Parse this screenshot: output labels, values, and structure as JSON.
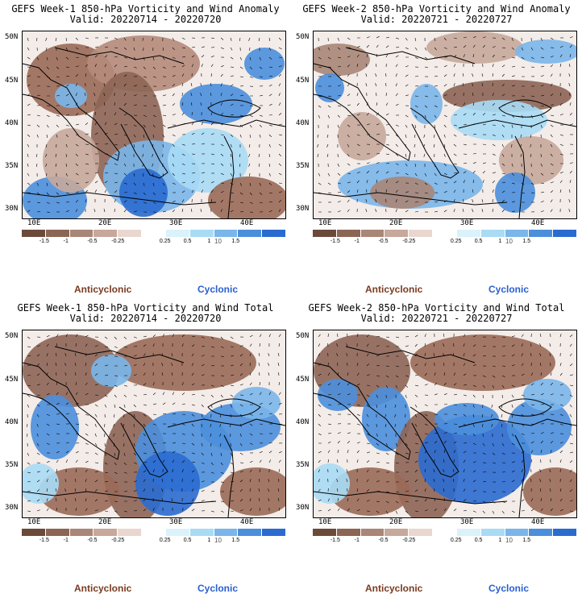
{
  "panels": [
    {
      "title": "GEFS Week-1 850-hPa Vorticity and Wind Anomaly",
      "valid": "Valid: 20220714 - 20220720"
    },
    {
      "title": "GEFS Week-2 850-hPa Vorticity and Wind Anomaly",
      "valid": "Valid: 20220721 - 20220727"
    },
    {
      "title": "GEFS Week-1 850-hPa Vorticity and Wind Total",
      "valid": "Valid: 20220714 - 20220720"
    },
    {
      "title": "GEFS Week-2 850-hPa Vorticity and Wind Total",
      "valid": "Valid: 20220721 - 20220727"
    }
  ],
  "lat_labels": [
    "50N",
    "45N",
    "40N",
    "35N",
    "30N"
  ],
  "lon_labels": [
    "10E",
    "20E",
    "30E",
    "40E"
  ],
  "colorbar": {
    "colors": [
      "#6b4a3a",
      "#8d6555",
      "#a98677",
      "#c7a89b",
      "#e9d7cf",
      "#ffffff",
      "#dbf2fb",
      "#a9dbf5",
      "#7ab6ea",
      "#4b8fdb",
      "#2a6bd0"
    ],
    "labels": [
      "-1.5",
      "-1",
      "-0.5",
      "-0.25",
      "0.25",
      "0.5",
      "1",
      "1.5"
    ],
    "ref_vector": "10"
  },
  "legend": {
    "anticyclonic": "Anticyclonic",
    "cyclonic": "Cyclonic",
    "anticyclonic_color": "#7a3b20",
    "cyclonic_color": "#2a5fd0"
  }
}
